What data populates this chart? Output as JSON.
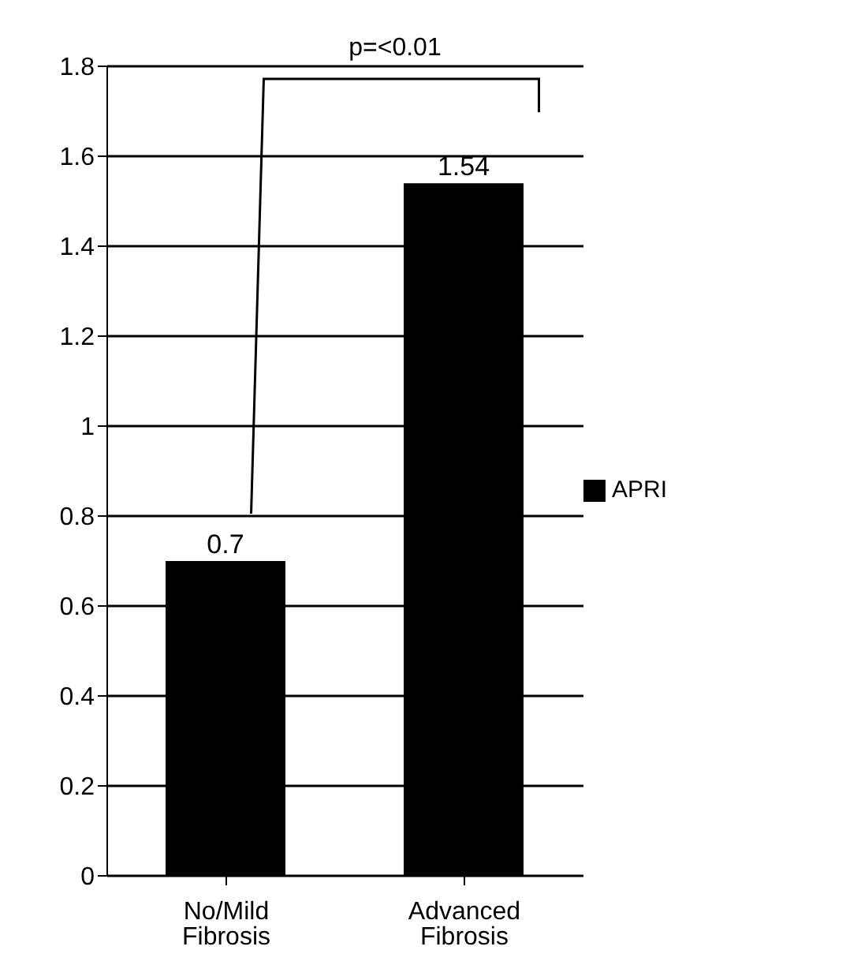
{
  "chart_data": {
    "type": "bar",
    "categories": [
      "No/Mild Fibrosis",
      "Advanced Fibrosis"
    ],
    "series": [
      {
        "name": "APRI",
        "color": "#000000",
        "values": [
          0.7,
          1.54
        ]
      }
    ],
    "ylim": [
      0,
      1.8
    ],
    "yticks": [
      0,
      0.2,
      0.4,
      0.6,
      0.8,
      1,
      1.2,
      1.4,
      1.6,
      1.8
    ],
    "grid": "y",
    "legend": "right",
    "data_labels": true,
    "annotations": [
      "p=<0.01"
    ]
  }
}
